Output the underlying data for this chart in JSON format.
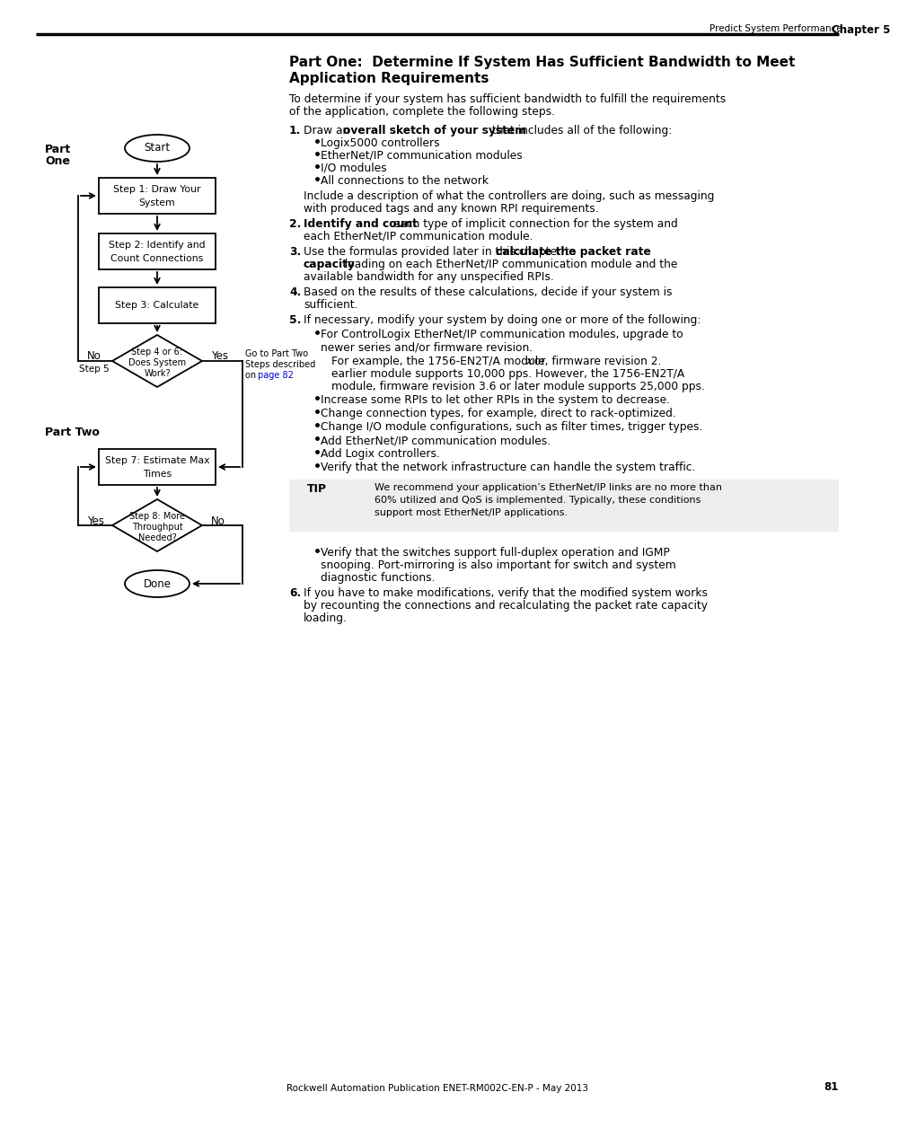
{
  "bg_color": "#ffffff",
  "text_color": "#000000",
  "link_color": "#0000cc",
  "header_left": "Predict System Performance",
  "header_right": "Chapter 5",
  "footer_text": "Rockwell Automation Publication ENET-RM002C-EN-P - May 2013",
  "page_number": "81",
  "section_title_1": "Part One:  Determine If System Has Sufficient Bandwidth to Meet",
  "section_title_2": "Application Requirements",
  "intro_line1": "To determine if your system has sufficient bandwidth to fulfill the requirements",
  "intro_line2": "of the application, complete the following steps."
}
